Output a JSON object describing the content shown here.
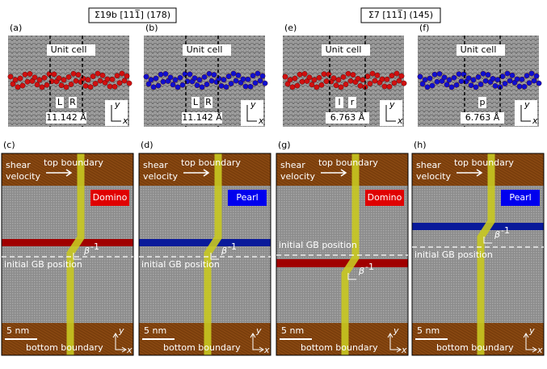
{
  "headers": [
    "Σ19b [111̅] (178)",
    "Σ7 [111̅] (145)"
  ],
  "top_panels": [
    {
      "label": "(a)",
      "unit_cell": "Unit cell",
      "marks": [
        "L",
        "R"
      ],
      "length": "11.142 Å",
      "y_axis": "y",
      "x_axis": "x"
    },
    {
      "label": "(b)",
      "unit_cell": "Unit cell",
      "marks": [
        "L",
        "R"
      ],
      "length": "11.142 Å",
      "y_axis": "y",
      "x_axis": "x"
    },
    {
      "label": "(e)",
      "unit_cell": "Unit cell",
      "marks": [
        "l",
        "r"
      ],
      "length": "6.763 Å",
      "y_axis": "y",
      "x_axis": "x"
    },
    {
      "label": "(f)",
      "unit_cell": "Unit cell",
      "marks": [
        "p"
      ],
      "length": "6.763 Å",
      "y_axis": "y",
      "x_axis": "x"
    }
  ],
  "bottom_panels": [
    {
      "label": "(c)",
      "shear": [
        "shear",
        "velocity"
      ],
      "top": "top boundary",
      "mode": "Domino",
      "beta": "β",
      "beta_exp": "-1",
      "gb": "initial GB position",
      "scale": "5 nm",
      "bottom": "bottom boundary",
      "y_axis": "y",
      "x_axis": "x"
    },
    {
      "label": "(d)",
      "shear": [
        "shear",
        "velocity"
      ],
      "top": "top boundary",
      "mode": "Pearl",
      "beta": "β",
      "beta_exp": "-1",
      "gb": "initial GB position",
      "scale": "5 nm",
      "bottom": "bottom boundary",
      "y_axis": "y",
      "x_axis": "x"
    },
    {
      "label": "(g)",
      "shear": [
        "shear",
        "velocity"
      ],
      "top": "top boundary",
      "mode": "Domino",
      "beta": "β",
      "beta_exp": "-1",
      "gb": "initial GB position",
      "scale": "5 nm",
      "bottom": "bottom boundary",
      "y_axis": "y",
      "x_axis": "x"
    },
    {
      "label": "(h)",
      "shear": [
        "shear",
        "velocity"
      ],
      "top": "top boundary",
      "mode": "Pearl",
      "beta": "β",
      "beta_exp": "-1",
      "gb": "initial GB position",
      "scale": "5 nm",
      "bottom": "bottom boundary",
      "y_axis": "y",
      "x_axis": "x"
    }
  ]
}
